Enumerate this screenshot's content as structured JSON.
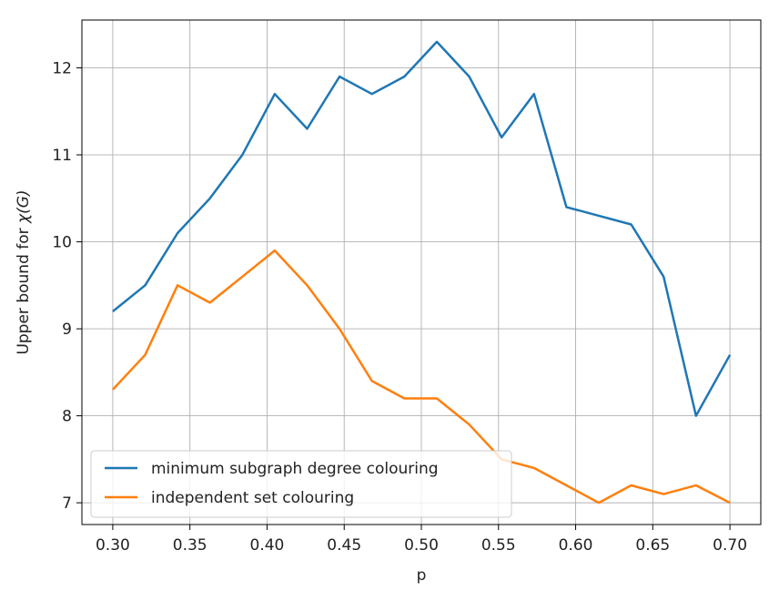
{
  "chart_data": {
    "type": "line",
    "xlabel": "p",
    "ylabel_prefix": "Upper bound for ",
    "ylabel_math": "χ(G)",
    "xlim": [
      0.28,
      0.72
    ],
    "ylim": [
      6.75,
      12.55
    ],
    "xticks": [
      0.3,
      0.35,
      0.4,
      0.45,
      0.5,
      0.55,
      0.6,
      0.65,
      0.7
    ],
    "xtick_labels": [
      "0.30",
      "0.35",
      "0.40",
      "0.45",
      "0.50",
      "0.55",
      "0.60",
      "0.65",
      "0.70"
    ],
    "yticks": [
      7,
      8,
      9,
      10,
      11,
      12
    ],
    "ytick_labels": [
      "7",
      "8",
      "9",
      "10",
      "11",
      "12"
    ],
    "grid": true,
    "legend_position": "lower-left",
    "x": [
      0.3,
      0.321,
      0.342,
      0.363,
      0.384,
      0.405,
      0.426,
      0.447,
      0.468,
      0.489,
      0.51,
      0.531,
      0.552,
      0.573,
      0.594,
      0.615,
      0.636,
      0.657,
      0.678,
      0.7
    ],
    "series": [
      {
        "name": "minimum subgraph degree colouring",
        "color": "#1f77b4",
        "values": [
          9.2,
          9.5,
          10.1,
          10.5,
          11.0,
          11.7,
          11.3,
          11.9,
          11.7,
          11.9,
          12.3,
          11.9,
          11.2,
          11.7,
          10.4,
          10.3,
          10.2,
          9.6,
          8.0,
          8.7
        ]
      },
      {
        "name": "independent set colouring",
        "color": "#ff7f0e",
        "values": [
          8.3,
          8.7,
          9.5,
          9.3,
          9.6,
          9.9,
          9.5,
          9.0,
          8.4,
          8.2,
          8.2,
          7.9,
          7.5,
          7.4,
          7.2,
          7.0,
          7.2,
          7.1,
          7.2,
          7.0
        ]
      }
    ]
  }
}
